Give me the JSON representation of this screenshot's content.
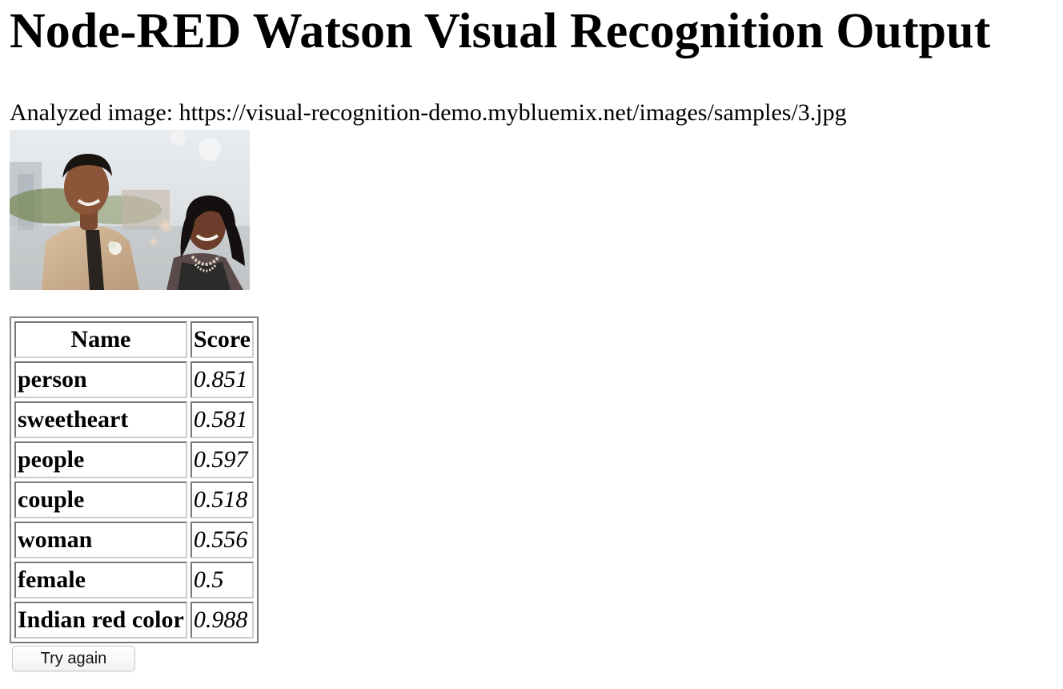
{
  "page": {
    "title": "Node-RED Watson Visual Recognition Output",
    "analyzed_label": "Analyzed image: https://visual-recognition-demo.mybluemix.net/images/samples/3.jpg"
  },
  "image": {
    "description": "photo of a smiling young man in a tan suit and a smiling young woman in a dark dress"
  },
  "table": {
    "headers": {
      "name": "Name",
      "score": "Score"
    },
    "rows": [
      {
        "name": "person",
        "score": "0.851"
      },
      {
        "name": "sweetheart",
        "score": "0.581"
      },
      {
        "name": "people",
        "score": "0.597"
      },
      {
        "name": "couple",
        "score": "0.518"
      },
      {
        "name": "woman",
        "score": "0.556"
      },
      {
        "name": "female",
        "score": "0.5"
      },
      {
        "name": "Indian red color",
        "score": "0.988"
      }
    ]
  },
  "actions": {
    "try_again_label": "Try again"
  }
}
